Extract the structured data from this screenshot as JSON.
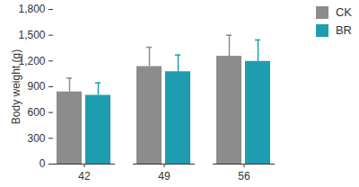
{
  "chart_data": {
    "type": "bar",
    "y_label": "Body weight (g)",
    "categories": [
      42,
      49,
      56
    ],
    "series": [
      {
        "name": "CK",
        "color": "#8c8c8c",
        "values": [
          840,
          1135,
          1255
        ],
        "errors": [
          160,
          225,
          245
        ]
      },
      {
        "name": "BR",
        "color": "#1e9db0",
        "values": [
          800,
          1075,
          1195
        ],
        "errors": [
          145,
          195,
          250
        ]
      }
    ],
    "ylim": [
      0,
      1800
    ],
    "yticks": [
      0,
      300,
      600,
      900,
      1200,
      1500,
      1800
    ],
    "grid": false,
    "legend": "top-right"
  }
}
